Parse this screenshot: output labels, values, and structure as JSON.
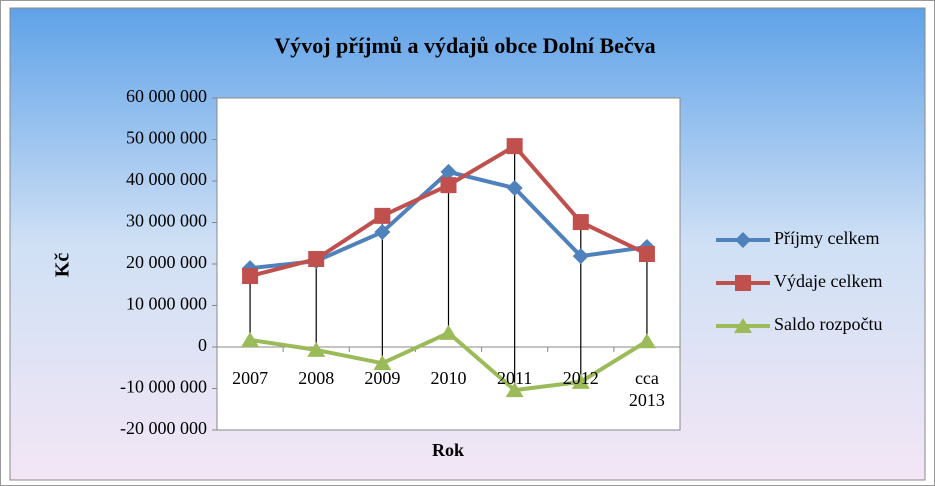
{
  "chart_data": {
    "type": "line",
    "title": "Vývoj příjmů a výdajů obce Dolní Bečva",
    "x_label": "Rok",
    "y_label": "Kč",
    "categories": [
      "2007",
      "2008",
      "2009",
      "2010",
      "2011",
      "2012",
      "cca 2013"
    ],
    "series": [
      {
        "name": "Příjmy celkem",
        "color": "#4f81bd",
        "marker": "diamond",
        "values": [
          19000000,
          20700000,
          27700000,
          42200000,
          38300000,
          21900000,
          24100000
        ]
      },
      {
        "name": "Výdaje celkem",
        "color": "#c0504d",
        "marker": "square",
        "values": [
          17100000,
          21200000,
          31600000,
          39000000,
          48400000,
          30100000,
          22400000
        ]
      },
      {
        "name": "Saldo rozpočtu",
        "color": "#9bbb59",
        "marker": "triangle",
        "values": [
          1700000,
          -700000,
          -3900000,
          3400000,
          -10400000,
          -8400000,
          1400000
        ]
      }
    ],
    "ylim": [
      -20000000,
      60000000
    ],
    "yticks": [
      {
        "value": -20000000,
        "label": "-20 000 000"
      },
      {
        "value": -10000000,
        "label": "-10 000 000"
      },
      {
        "value": 0,
        "label": "0"
      },
      {
        "value": 10000000,
        "label": "10 000 000"
      },
      {
        "value": 20000000,
        "label": "20 000 000"
      },
      {
        "value": 30000000,
        "label": "30 000 000"
      },
      {
        "value": 40000000,
        "label": "40 000 000"
      },
      {
        "value": 50000000,
        "label": "50 000 000"
      },
      {
        "value": 60000000,
        "label": "60 000 000"
      }
    ],
    "high_low_lines": true,
    "legend": "right"
  }
}
